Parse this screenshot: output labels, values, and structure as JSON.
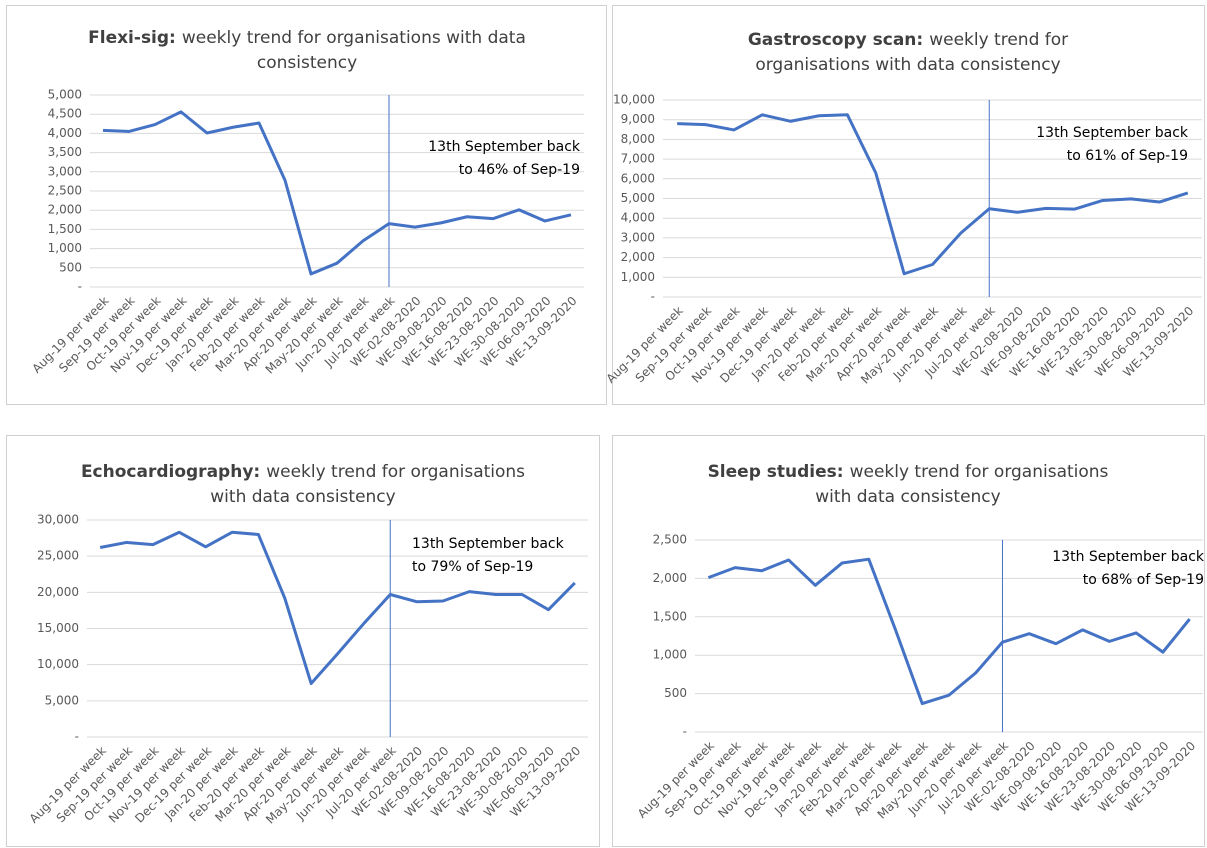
{
  "chart_data": [
    {
      "type": "line",
      "title": "Flexi-sig:",
      "subtitle": [
        "weekly trend for organisations with data",
        "consistency"
      ],
      "annotation": [
        "13th September back",
        "to 46% of Sep-19"
      ],
      "reference_line": "Jul-20 per week",
      "categories": [
        "Aug-19 per week",
        "Sep-19 per week",
        "Oct-19 per week",
        "Nov-19 per week",
        "Dec-19 per week",
        "Jan-20 per week",
        "Feb-20 per week",
        "Mar-20 per week",
        "Apr-20 per week",
        "May-20 per week",
        "Jun-20 per week",
        "Jul-20 per week",
        "WE-02-08-2020",
        "WE-09-08-2020",
        "WE-16-08-2020",
        "WE-23-08-2020",
        "WE-30-08-2020",
        "WE-06-09-2020",
        "WE-13-09-2020"
      ],
      "values": [
        4080,
        4050,
        4230,
        4560,
        4010,
        4160,
        4270,
        2780,
        340,
        620,
        1200,
        1650,
        1560,
        1670,
        1830,
        1780,
        2010,
        1720,
        1880
      ],
      "color": "#4472c4",
      "ylim": [
        0,
        5000
      ],
      "grid": true,
      "yticks": [
        {
          "value": 0,
          "label": "-"
        },
        {
          "value": 500,
          "label": "500"
        },
        {
          "value": 1000,
          "label": "1,000"
        },
        {
          "value": 1500,
          "label": "1,500"
        },
        {
          "value": 2000,
          "label": "2,000"
        },
        {
          "value": 2500,
          "label": "2,500"
        },
        {
          "value": 3000,
          "label": "3,000"
        },
        {
          "value": 3500,
          "label": "3,500"
        },
        {
          "value": 4000,
          "label": "4,000"
        },
        {
          "value": 4500,
          "label": "4,500"
        },
        {
          "value": 5000,
          "label": "5,000"
        }
      ]
    },
    {
      "type": "line",
      "title": "Gastroscopy scan:",
      "subtitle": [
        "weekly trend for",
        "organisations with data consistency"
      ],
      "annotation": [
        "13th September back",
        "to 61% of Sep-19"
      ],
      "reference_line": "Jul-20 per week",
      "categories": [
        "Aug-19 per week",
        "Sep-19 per week",
        "Oct-19 per week",
        "Nov-19 per week",
        "Dec-19 per week",
        "Jan-20 per week",
        "Feb-20 per week",
        "Mar-20 per week",
        "Apr-20 per week",
        "May-20 per week",
        "Jun-20 per week",
        "Jul-20 per week",
        "WE-02-08-2020",
        "WE-09-08-2020",
        "WE-16-08-2020",
        "WE-23-08-2020",
        "WE-30-08-2020",
        "WE-06-09-2020",
        "WE-13-09-2020"
      ],
      "values": [
        8800,
        8750,
        8480,
        9250,
        8920,
        9200,
        9250,
        6300,
        1180,
        1650,
        3250,
        4480,
        4300,
        4500,
        4460,
        4900,
        4980,
        4820,
        5280
      ],
      "color": "#4472c4",
      "ylim": [
        0,
        10000
      ],
      "grid": true,
      "yticks": [
        {
          "value": 0,
          "label": "-"
        },
        {
          "value": 1000,
          "label": "1,000"
        },
        {
          "value": 2000,
          "label": "2,000"
        },
        {
          "value": 3000,
          "label": "3,000"
        },
        {
          "value": 4000,
          "label": "4,000"
        },
        {
          "value": 5000,
          "label": "5,000"
        },
        {
          "value": 6000,
          "label": "6,000"
        },
        {
          "value": 7000,
          "label": "7,000"
        },
        {
          "value": 8000,
          "label": "8,000"
        },
        {
          "value": 9000,
          "label": "9,000"
        },
        {
          "value": 10000,
          "label": "10,000"
        }
      ]
    },
    {
      "type": "line",
      "title": "Echocardiography:",
      "subtitle": [
        "weekly trend for organisations",
        "with data consistency"
      ],
      "annotation": [
        "13th September back",
        "to 79% of Sep-19"
      ],
      "reference_line": "Jul-20 per week",
      "categories": [
        "Aug-19 per week",
        "Sep-19 per week",
        "Oct-19 per week",
        "Nov-19 per week",
        "Dec-19 per week",
        "Jan-20 per week",
        "Feb-20 per week",
        "Mar-20 per week",
        "Apr-20 per week",
        "May-20 per week",
        "Jun-20 per week",
        "Jul-20 per week",
        "WE-02-08-2020",
        "WE-09-08-2020",
        "WE-16-08-2020",
        "WE-23-08-2020",
        "WE-30-08-2020",
        "WE-06-09-2020",
        "WE-13-09-2020"
      ],
      "values": [
        26200,
        26900,
        26600,
        28300,
        26300,
        28300,
        28000,
        19200,
        7400,
        11500,
        15700,
        19700,
        18700,
        18800,
        20100,
        19700,
        19700,
        17600,
        21300
      ],
      "color": "#4472c4",
      "ylim": [
        0,
        30000
      ],
      "grid": true,
      "yticks": [
        {
          "value": 0,
          "label": "-"
        },
        {
          "value": 5000,
          "label": "5,000"
        },
        {
          "value": 10000,
          "label": "10,000"
        },
        {
          "value": 15000,
          "label": "15,000"
        },
        {
          "value": 20000,
          "label": "20,000"
        },
        {
          "value": 25000,
          "label": "25,000"
        },
        {
          "value": 30000,
          "label": "30,000"
        }
      ]
    },
    {
      "type": "line",
      "title": "Sleep studies:",
      "subtitle": [
        "weekly trend for organisations",
        "with data consistency"
      ],
      "annotation": [
        "13th September back",
        "to 68% of Sep-19"
      ],
      "reference_line": "Jul-20 per week",
      "categories": [
        "Aug-19 per week",
        "Sep-19 per week",
        "Oct-19 per week",
        "Nov-19 per week",
        "Dec-19 per week",
        "Jan-20 per week",
        "Feb-20 per week",
        "Mar-20 per week",
        "Apr-20 per week",
        "May-20 per week",
        "Jun-20 per week",
        "Jul-20 per week",
        "WE-02-08-2020",
        "WE-09-08-2020",
        "WE-16-08-2020",
        "WE-23-08-2020",
        "WE-30-08-2020",
        "WE-06-09-2020",
        "WE-13-09-2020"
      ],
      "values": [
        2010,
        2140,
        2100,
        2240,
        1910,
        2200,
        2250,
        1330,
        370,
        480,
        770,
        1170,
        1280,
        1150,
        1330,
        1180,
        1290,
        1040,
        1470
      ],
      "color": "#4472c4",
      "ylim": [
        0,
        2500
      ],
      "grid": true,
      "yticks": [
        {
          "value": 0,
          "label": "-"
        },
        {
          "value": 500,
          "label": "500"
        },
        {
          "value": 1000,
          "label": "1,000"
        },
        {
          "value": 1500,
          "label": "1,500"
        },
        {
          "value": 2000,
          "label": "2,000"
        },
        {
          "value": 2500,
          "label": "2,500"
        }
      ]
    }
  ]
}
